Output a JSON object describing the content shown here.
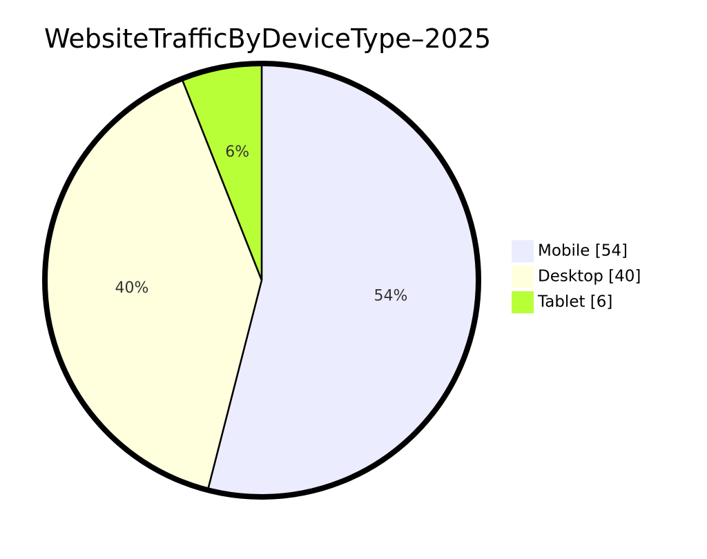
{
  "chart_data": {
    "type": "pie",
    "title": "WebsiteTrafficByDeviceType–2025",
    "slices": [
      {
        "name": "Mobile",
        "value": 54,
        "label": "54%",
        "legend": "Mobile [54]",
        "color": "#ECECFF"
      },
      {
        "name": "Desktop",
        "value": 40,
        "label": "40%",
        "legend": "Desktop [40]",
        "color": "#FFFFDE"
      },
      {
        "name": "Tablet",
        "value": 6,
        "label": "6%",
        "legend": "Tablet [6]",
        "color": "#B9FF38"
      }
    ],
    "start_angle_deg": 0,
    "direction": "clockwise",
    "legend_position": "right"
  }
}
